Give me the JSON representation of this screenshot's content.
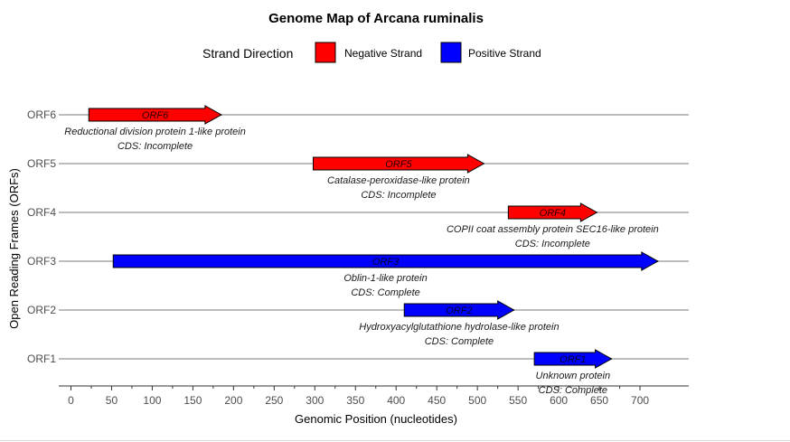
{
  "chart_data": {
    "type": "gene-map",
    "title": "Genome Map of Arcana ruminalis",
    "xlabel": "Genomic Position (nucleotides)",
    "ylabel": "Open Reading Frames (ORFs)",
    "xlim": [
      -15,
      760
    ],
    "x_ticks": [
      0,
      50,
      100,
      150,
      200,
      250,
      300,
      350,
      400,
      450,
      500,
      550,
      600,
      650,
      700
    ],
    "categories": [
      "ORF1",
      "ORF2",
      "ORF3",
      "ORF4",
      "ORF5",
      "ORF6"
    ],
    "legend": {
      "title": "Strand Direction",
      "position": "top",
      "entries": [
        {
          "label": "Negative Strand",
          "color": "#ff0000"
        },
        {
          "label": "Positive Strand",
          "color": "#0000ff"
        }
      ]
    },
    "genes": [
      {
        "id": "ORF1",
        "start": 570,
        "end": 665,
        "strand": "Positive Strand",
        "protein": "Unknown protein",
        "cds": "CDS: Complete"
      },
      {
        "id": "ORF2",
        "start": 410,
        "end": 545,
        "strand": "Positive Strand",
        "protein": "Hydroxyacylglutathione hydrolase-like protein",
        "cds": "CDS: Complete"
      },
      {
        "id": "ORF3",
        "start": 52,
        "end": 722,
        "strand": "Positive Strand",
        "protein": "Oblin-1-like protein",
        "cds": "CDS: Complete"
      },
      {
        "id": "ORF4",
        "start": 538,
        "end": 647,
        "strand": "Negative Strand",
        "protein": "COPII coat assembly protein SEC16-like protein",
        "cds": "CDS: Incomplete"
      },
      {
        "id": "ORF5",
        "start": 298,
        "end": 508,
        "strand": "Negative Strand",
        "protein": "Catalase-peroxidase-like protein",
        "cds": "CDS: Incomplete"
      },
      {
        "id": "ORF6",
        "start": 22,
        "end": 185,
        "strand": "Negative Strand",
        "protein": "Reductional division protein 1-like protein",
        "cds": "CDS: Incomplete"
      }
    ]
  }
}
